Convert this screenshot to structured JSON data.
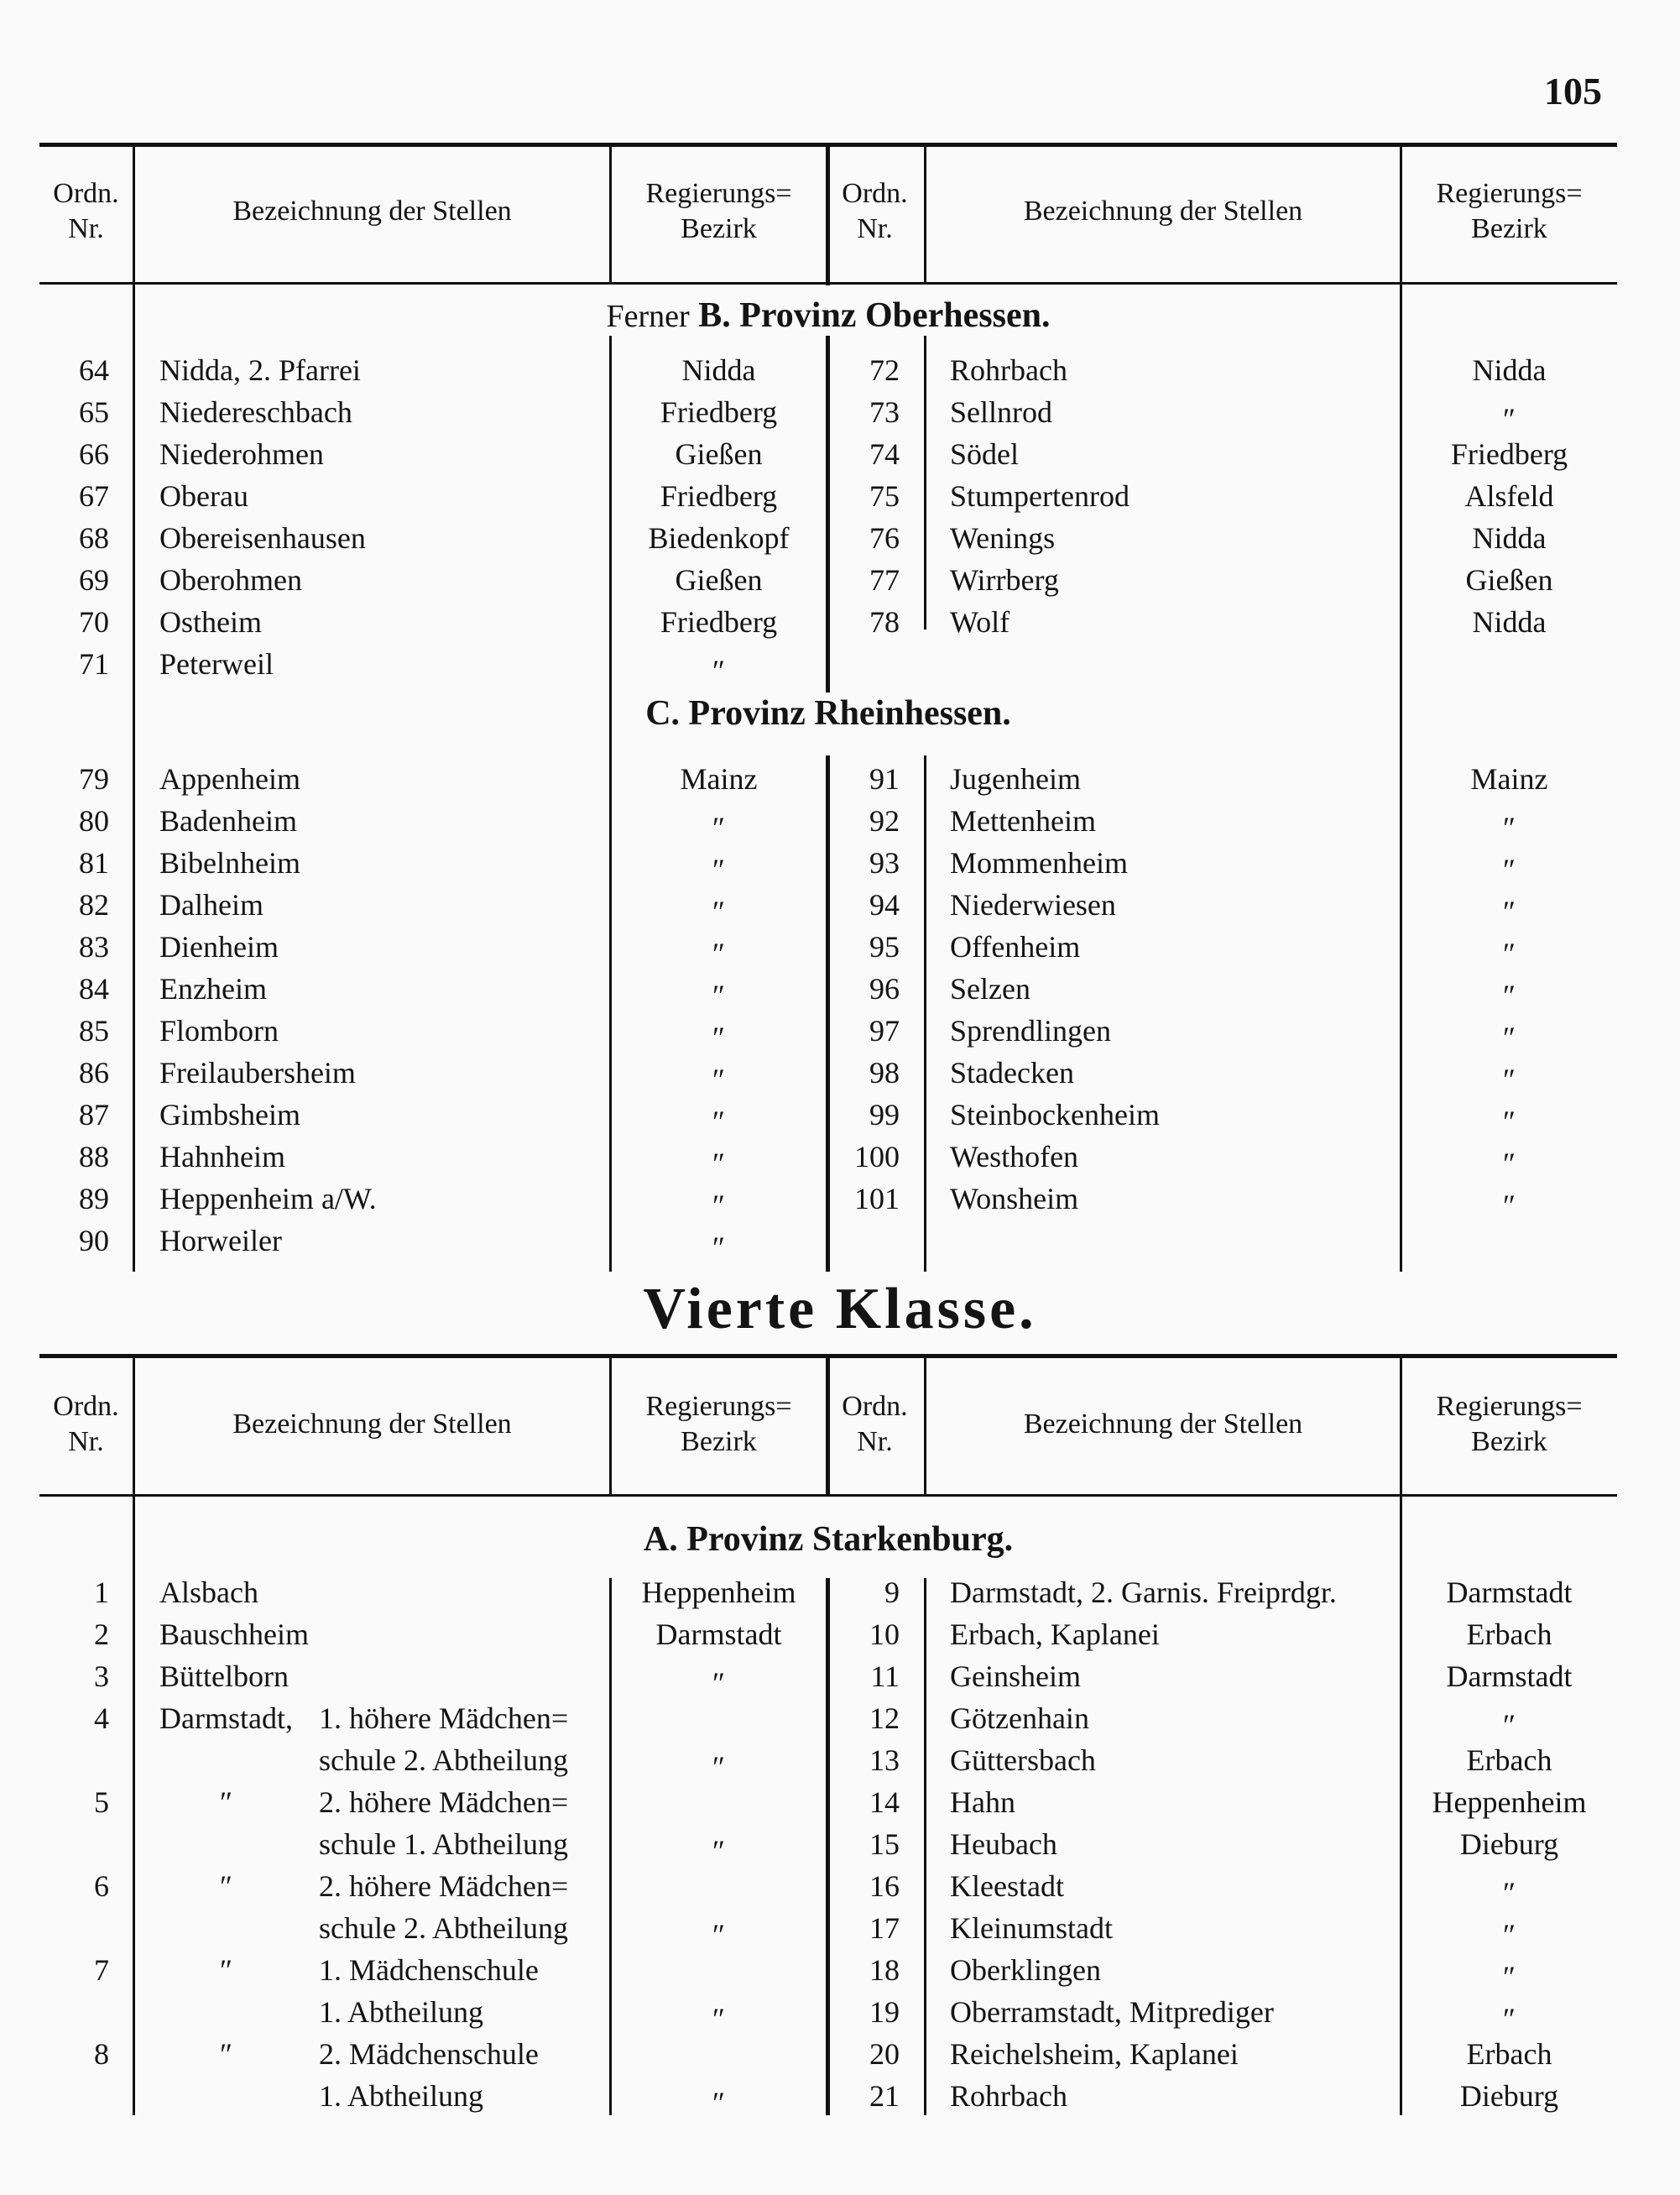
{
  "page_number": "105",
  "header": {
    "ordn": "Ordn.",
    "nr": "Nr.",
    "bezeichnung": "Bezeichnung der Stellen",
    "regierungs": "Regierungs=",
    "bezirk": "Bezirk"
  },
  "section_b": {
    "prefix": "Ferner",
    "title": "B. Provinz Oberhessen.",
    "left": [
      {
        "nr": "64",
        "name": "Nidda, 2. Pfarrei",
        "bezirk": "Nidda"
      },
      {
        "nr": "65",
        "name": "Niedereschbach",
        "bezirk": "Friedberg"
      },
      {
        "nr": "66",
        "name": "Niederohmen",
        "bezirk": "Gießen"
      },
      {
        "nr": "67",
        "name": "Oberau",
        "bezirk": "Friedberg"
      },
      {
        "nr": "68",
        "name": "Obereisenhausen",
        "bezirk": "Biedenkopf"
      },
      {
        "nr": "69",
        "name": "Oberohmen",
        "bezirk": "Gießen"
      },
      {
        "nr": "70",
        "name": "Ostheim",
        "bezirk": "Friedberg"
      },
      {
        "nr": "71",
        "name": "Peterweil",
        "bezirk": "″"
      }
    ],
    "right": [
      {
        "nr": "72",
        "name": "Rohrbach",
        "bezirk": "Nidda"
      },
      {
        "nr": "73",
        "name": "Sellnrod",
        "bezirk": "″"
      },
      {
        "nr": "74",
        "name": "Södel",
        "bezirk": "Friedberg"
      },
      {
        "nr": "75",
        "name": "Stumpertenrod",
        "bezirk": "Alsfeld"
      },
      {
        "nr": "76",
        "name": "Wenings",
        "bezirk": "Nidda"
      },
      {
        "nr": "77",
        "name": "Wirrberg",
        "bezirk": "Gießen"
      },
      {
        "nr": "78",
        "name": "Wolf",
        "bezirk": "Nidda"
      }
    ]
  },
  "section_c": {
    "title": "C. Provinz Rheinhessen.",
    "left": [
      {
        "nr": "79",
        "name": "Appenheim",
        "bezirk": "Mainz"
      },
      {
        "nr": "80",
        "name": "Badenheim",
        "bezirk": "″"
      },
      {
        "nr": "81",
        "name": "Bibelnheim",
        "bezirk": "″"
      },
      {
        "nr": "82",
        "name": "Dalheim",
        "bezirk": "″"
      },
      {
        "nr": "83",
        "name": "Dienheim",
        "bezirk": "″"
      },
      {
        "nr": "84",
        "name": "Enzheim",
        "bezirk": "″"
      },
      {
        "nr": "85",
        "name": "Flomborn",
        "bezirk": "″"
      },
      {
        "nr": "86",
        "name": "Freilaubersheim",
        "bezirk": "″"
      },
      {
        "nr": "87",
        "name": "Gimbsheim",
        "bezirk": "″"
      },
      {
        "nr": "88",
        "name": "Hahnheim",
        "bezirk": "″"
      },
      {
        "nr": "89",
        "name": "Heppenheim a/W.",
        "bezirk": "″"
      },
      {
        "nr": "90",
        "name": "Horweiler",
        "bezirk": "″"
      }
    ],
    "right": [
      {
        "nr": "91",
        "name": "Jugenheim",
        "bezirk": "Mainz"
      },
      {
        "nr": "92",
        "name": "Mettenheim",
        "bezirk": "″"
      },
      {
        "nr": "93",
        "name": "Mommenheim",
        "bezirk": "″"
      },
      {
        "nr": "94",
        "name": "Niederwiesen",
        "bezirk": "″"
      },
      {
        "nr": "95",
        "name": "Offenheim",
        "bezirk": "″"
      },
      {
        "nr": "96",
        "name": "Selzen",
        "bezirk": "″"
      },
      {
        "nr": "97",
        "name": "Sprendlingen",
        "bezirk": "″"
      },
      {
        "nr": "98",
        "name": "Stadecken",
        "bezirk": "″"
      },
      {
        "nr": "99",
        "name": "Steinbockenheim",
        "bezirk": "″"
      },
      {
        "nr": "100",
        "name": "Westhofen",
        "bezirk": "″"
      },
      {
        "nr": "101",
        "name": "Wonsheim",
        "bezirk": "″"
      }
    ]
  },
  "klasse_title": "Vierte Klasse.",
  "section_a": {
    "title": "A. Provinz Starkenburg.",
    "left": [
      {
        "nr": "1",
        "name": "Alsbach",
        "sub": "",
        "bezirk": "Heppenheim"
      },
      {
        "nr": "2",
        "name": "Bauschheim",
        "sub": "",
        "bezirk": "Darmstadt"
      },
      {
        "nr": "3",
        "name": "Büttelborn",
        "sub": "",
        "bezirk": "″"
      },
      {
        "nr": "4",
        "name": "Darmstadt,",
        "sub": "1. höhere Mädchen=",
        "bezirk": ""
      },
      {
        "nr": "",
        "name": "",
        "sub": "schule 2. Abtheilung",
        "bezirk": "″"
      },
      {
        "nr": "5",
        "name": "″",
        "sub": "2. höhere Mädchen=",
        "bezirk": ""
      },
      {
        "nr": "",
        "name": "",
        "sub": "schule 1. Abtheilung",
        "bezirk": "″"
      },
      {
        "nr": "6",
        "name": "″",
        "sub": "2. höhere Mädchen=",
        "bezirk": ""
      },
      {
        "nr": "",
        "name": "",
        "sub": "schule 2. Abtheilung",
        "bezirk": "″"
      },
      {
        "nr": "7",
        "name": "″",
        "sub": "1. Mädchenschule",
        "bezirk": ""
      },
      {
        "nr": "",
        "name": "",
        "sub": "1. Abtheilung",
        "bezirk": "″"
      },
      {
        "nr": "8",
        "name": "″",
        "sub": "2. Mädchenschule",
        "bezirk": ""
      },
      {
        "nr": "",
        "name": "",
        "sub": "1. Abtheilung",
        "bezirk": "″"
      }
    ],
    "right": [
      {
        "nr": "9",
        "name": "Darmstadt, 2. Garnis. Freiprdgr.",
        "bezirk": "Darmstadt"
      },
      {
        "nr": "10",
        "name": "Erbach, Kaplanei",
        "bezirk": "Erbach"
      },
      {
        "nr": "11",
        "name": "Geinsheim",
        "bezirk": "Darmstadt"
      },
      {
        "nr": "12",
        "name": "Götzenhain",
        "bezirk": "″"
      },
      {
        "nr": "13",
        "name": "Güttersbach",
        "bezirk": "Erbach"
      },
      {
        "nr": "14",
        "name": "Hahn",
        "bezirk": "Heppenheim"
      },
      {
        "nr": "15",
        "name": "Heubach",
        "bezirk": "Dieburg"
      },
      {
        "nr": "16",
        "name": "Kleestadt",
        "bezirk": "″"
      },
      {
        "nr": "17",
        "name": "Kleinumstadt",
        "bezirk": "″"
      },
      {
        "nr": "18",
        "name": "Oberklingen",
        "bezirk": "″"
      },
      {
        "nr": "19",
        "name": "Oberramstadt, Mitprediger",
        "bezirk": "″"
      },
      {
        "nr": "20",
        "name": "Reichelsheim, Kaplanei",
        "bezirk": "Erbach"
      },
      {
        "nr": "21",
        "name": "Rohrbach",
        "bezirk": "Dieburg"
      }
    ]
  }
}
